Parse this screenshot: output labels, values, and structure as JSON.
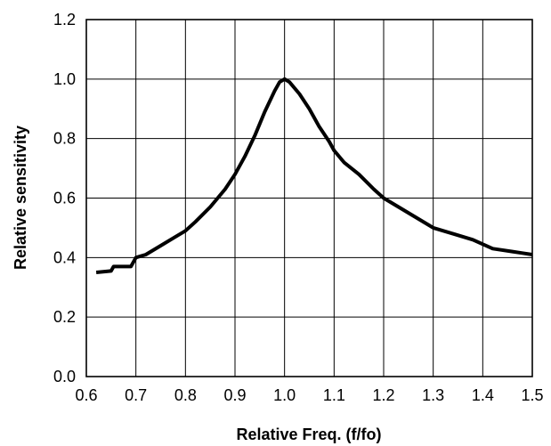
{
  "chart_data": {
    "type": "line",
    "title": "",
    "xlabel": "Relative Freq. (f/fo)",
    "ylabel": "Relative sensitivity",
    "xlim": [
      0.6,
      1.5
    ],
    "ylim": [
      0.0,
      1.2
    ],
    "grid": "vertical lines at every x tick; horizontal lines at every y tick",
    "x_ticks": [
      "0.6",
      "0.7",
      "0.8",
      "0.9",
      "1.0",
      "1.1",
      "1.2",
      "1.3",
      "1.4",
      "1.5"
    ],
    "y_ticks": [
      "0.0",
      "0.2",
      "0.4",
      "0.6",
      "0.8",
      "1.0",
      "1.2"
    ],
    "series": [
      {
        "color": "#000000",
        "points": [
          [
            0.62,
            0.35
          ],
          [
            0.65,
            0.355
          ],
          [
            0.655,
            0.37
          ],
          [
            0.68,
            0.37
          ],
          [
            0.69,
            0.37
          ],
          [
            0.7,
            0.4
          ],
          [
            0.72,
            0.41
          ],
          [
            0.75,
            0.44
          ],
          [
            0.78,
            0.47
          ],
          [
            0.8,
            0.49
          ],
          [
            0.82,
            0.52
          ],
          [
            0.85,
            0.57
          ],
          [
            0.88,
            0.63
          ],
          [
            0.9,
            0.68
          ],
          [
            0.92,
            0.74
          ],
          [
            0.94,
            0.81
          ],
          [
            0.96,
            0.89
          ],
          [
            0.98,
            0.96
          ],
          [
            0.99,
            0.99
          ],
          [
            1.0,
            1.0
          ],
          [
            1.01,
            0.99
          ],
          [
            1.03,
            0.95
          ],
          [
            1.05,
            0.9
          ],
          [
            1.07,
            0.84
          ],
          [
            1.09,
            0.79
          ],
          [
            1.1,
            0.76
          ],
          [
            1.12,
            0.72
          ],
          [
            1.15,
            0.68
          ],
          [
            1.18,
            0.63
          ],
          [
            1.2,
            0.6
          ],
          [
            1.23,
            0.57
          ],
          [
            1.26,
            0.54
          ],
          [
            1.3,
            0.5
          ],
          [
            1.34,
            0.48
          ],
          [
            1.38,
            0.46
          ],
          [
            1.42,
            0.43
          ],
          [
            1.46,
            0.42
          ],
          [
            1.48,
            0.415
          ],
          [
            1.5,
            0.41
          ]
        ]
      }
    ]
  }
}
